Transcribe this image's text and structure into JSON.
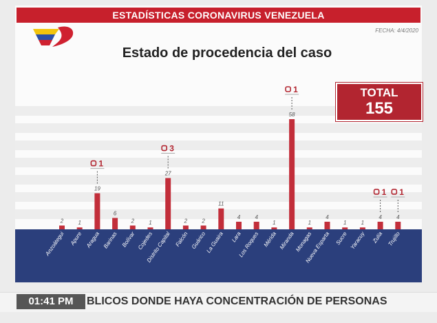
{
  "header": {
    "title": "ESTADÍSTICAS CORONAVIRUS VENEZUELA",
    "date": "FECHA: 4/4/2020"
  },
  "total": {
    "label": "TOTAL",
    "value": "155"
  },
  "colors": {
    "bar": "#c22e3a",
    "title_bar": "#c7202c",
    "total_box": "#b22530",
    "axis_band": "#2b3f7c",
    "badge": "#b22530"
  },
  "chart_data": {
    "type": "bar",
    "title": "Estado de procedencia del caso",
    "categories": [
      "Anzoátegui",
      "Apure",
      "Aragua",
      "Barinas",
      "Bolívar",
      "Cojedes",
      "Distrito Capital",
      "Falcón",
      "Guárico",
      "La Guaira",
      "Lara",
      "Los Roques",
      "Mérida",
      "Miranda",
      "Monagas",
      "Nueva Esparta",
      "Sucre",
      "Yaracuy",
      "Zulia",
      "Trujillo"
    ],
    "values": [
      2,
      1,
      19,
      6,
      2,
      1,
      27,
      2,
      2,
      11,
      4,
      4,
      1,
      58,
      1,
      4,
      1,
      1,
      4,
      4
    ],
    "data_labels": [
      "2",
      "1",
      "19",
      "6",
      "2",
      "1",
      "27",
      "2",
      "2",
      "11",
      "4",
      "4",
      "1",
      "58",
      "1",
      "4",
      "1",
      "1",
      "4",
      "4"
    ],
    "annotations": [
      {
        "category": "Aragua",
        "text": "1"
      },
      {
        "category": "Distrito Capital",
        "text": "3"
      },
      {
        "category": "Miranda",
        "text": "1"
      },
      {
        "category": "Zulia",
        "text": "1"
      },
      {
        "category": "Trujillo",
        "text": "1"
      }
    ],
    "grid": true,
    "legend": "none"
  },
  "ticker": {
    "time": "01:41 PM",
    "text": "BLICOS DONDE HAYA CONCENTRACIÓN DE PERSONAS"
  }
}
